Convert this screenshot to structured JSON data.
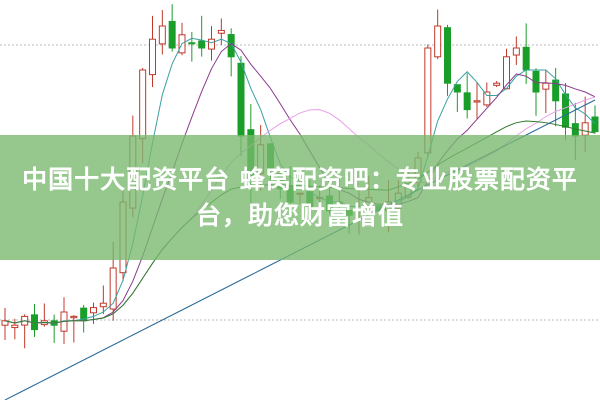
{
  "headline": "中国十大配资平台 蜂窝配资吧：专业股票配资平台，助您财富增值",
  "colors": {
    "up": "#c0392b",
    "down": "#1a9e2a",
    "banner": "#78b96e",
    "ma5": "#3aa0a0",
    "ma10": "#8a3a8a",
    "ma20": "#e8a0e8",
    "ma60": "#2a7a2a",
    "ma120": "#2a6a9a"
  },
  "chart_data": {
    "type": "candlestick",
    "closes": [
      18,
      17,
      19,
      16,
      18,
      17,
      20,
      19,
      18,
      21,
      22,
      30,
      45,
      60,
      75,
      82,
      85,
      80,
      83,
      81,
      80,
      82,
      84,
      78,
      60,
      50,
      58,
      52,
      48,
      45,
      47,
      44,
      46,
      43,
      45,
      42,
      44,
      46,
      43,
      45,
      47,
      50,
      55,
      80,
      85,
      72,
      70,
      66,
      68,
      70,
      72,
      78,
      80,
      75,
      70,
      72,
      68,
      62,
      60,
      63,
      61
    ]
  }
}
